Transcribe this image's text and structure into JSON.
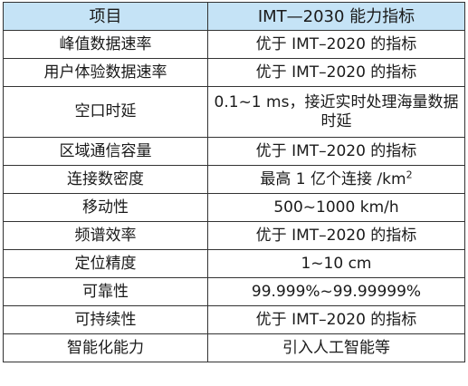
{
  "table": {
    "headers": {
      "item": "项目",
      "value": "IMT—2030 能力指标"
    },
    "rows": [
      {
        "item": "峰值数据速率",
        "value": "优于 IMT–2020 的指标"
      },
      {
        "item": "用户体验数据速率",
        "value": "优于 IMT–2020 的指标"
      },
      {
        "item": "空口时延",
        "value": "0.1~1 ms，接近实时处理海量数据时延"
      },
      {
        "item": "区域通信容量",
        "value": "优于 IMT–2020 的指标"
      },
      {
        "item": "连接数密度",
        "value": "最高 1 亿个连接 /km",
        "value_sup": "2"
      },
      {
        "item": "移动性",
        "value": "500~1000 km/h"
      },
      {
        "item": "频谱效率",
        "value": "优于 IMT–2020 的指标"
      },
      {
        "item": "定位精度",
        "value": "1~10 cm"
      },
      {
        "item": "可靠性",
        "value": "99.999%~99.99999%"
      },
      {
        "item": "可持续性",
        "value": "优于 IMT–2020 的指标"
      },
      {
        "item": "智能化能力",
        "value": "引入人工智能等"
      }
    ]
  },
  "colors": {
    "header_background": "#c5e3f6",
    "border": "#333333"
  }
}
